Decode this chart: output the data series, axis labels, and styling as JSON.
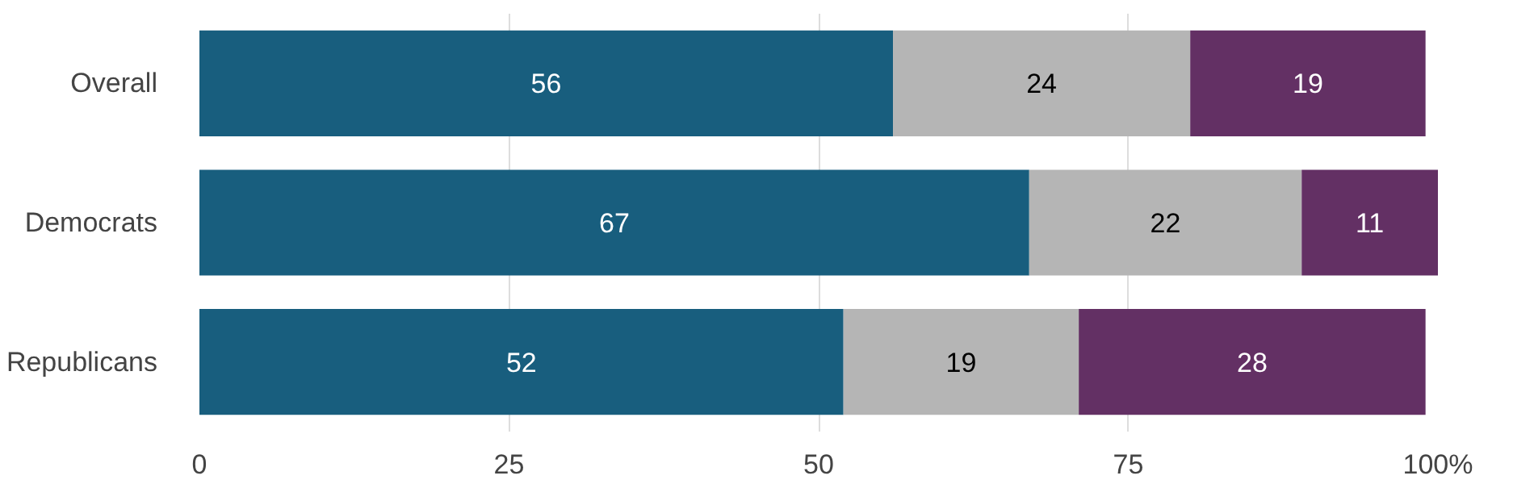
{
  "chart_data": {
    "type": "bar",
    "orientation": "horizontal",
    "stacked": true,
    "categories": [
      "Overall",
      "Democrats",
      "Republicans"
    ],
    "series": [
      {
        "color": "#185e7e",
        "values": [
          56,
          67,
          52
        ]
      },
      {
        "color": "#b5b5b5",
        "values": [
          24,
          22,
          19
        ]
      },
      {
        "color": "#633064",
        "values": [
          19,
          11,
          28
        ]
      }
    ],
    "xlim": [
      0,
      100
    ],
    "xticks": [
      0,
      25,
      50,
      75,
      {
        "value": 100,
        "label": "100%"
      }
    ],
    "grid": "x",
    "data_labels": true
  }
}
